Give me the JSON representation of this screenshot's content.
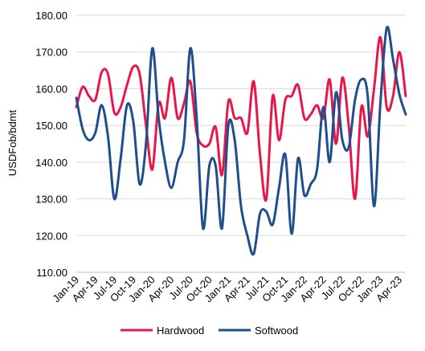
{
  "chart_data": {
    "type": "line",
    "title": "",
    "xlabel": "",
    "ylabel": "USDFob/bdmt",
    "ylim": [
      110,
      180
    ],
    "yticks": [
      "110.00",
      "120.00",
      "130.00",
      "140.00",
      "150.00",
      "160.00",
      "170.00",
      "180.00"
    ],
    "grid": true,
    "legend_position": "bottom",
    "x_tick_labels": [
      "Jan-19",
      "Apr-19",
      "Jul-19",
      "Oct-19",
      "Jan-20",
      "Apr-20",
      "Jul-20",
      "Oct-20",
      "Jan-21",
      "Apr-21",
      "Jul-21",
      "Oct-21",
      "Jan-22",
      "Apr-22",
      "Jul-22",
      "Oct-22",
      "Jan-23",
      "Apr-23"
    ],
    "x": [
      "Jan-19",
      "Feb-19",
      "Mar-19",
      "Apr-19",
      "May-19",
      "Jun-19",
      "Jul-19",
      "Aug-19",
      "Sep-19",
      "Oct-19",
      "Nov-19",
      "Dec-19",
      "Jan-20",
      "Feb-20",
      "Mar-20",
      "Apr-20",
      "May-20",
      "Jun-20",
      "Jul-20",
      "Aug-20",
      "Sep-20",
      "Oct-20",
      "Nov-20",
      "Dec-20",
      "Jan-21",
      "Feb-21",
      "Mar-21",
      "Apr-21",
      "May-21",
      "Jun-21",
      "Jul-21",
      "Aug-21",
      "Sep-21",
      "Oct-21",
      "Nov-21",
      "Dec-21",
      "Jan-22",
      "Feb-22",
      "Mar-22",
      "Apr-22",
      "May-22",
      "Jun-22",
      "Jul-22",
      "Aug-22",
      "Sep-22",
      "Oct-22",
      "Nov-22",
      "Dec-22",
      "Jan-23",
      "Feb-23",
      "Mar-23",
      "Apr-23",
      "May-23"
    ],
    "series": [
      {
        "name": "Hardwood",
        "color": "#e8174a",
        "values": [
          155,
          160.5,
          158,
          157,
          164.5,
          164,
          153.5,
          155,
          161,
          166,
          164,
          150,
          138,
          156,
          152,
          163,
          152,
          156,
          162,
          148,
          144.5,
          145,
          149.5,
          136.5,
          156.5,
          152,
          152,
          148,
          162,
          142,
          130,
          158,
          146,
          157,
          158,
          161,
          152,
          153,
          155.5,
          152,
          162.5,
          145,
          163,
          150,
          130,
          155,
          147,
          160,
          174,
          155,
          158,
          170,
          158
        ]
      },
      {
        "name": "Softwood",
        "color": "#1f4e8c",
        "values": [
          157.5,
          149,
          146,
          148,
          155.5,
          147,
          130,
          141,
          155.5,
          151,
          134,
          145,
          171,
          152,
          140,
          133,
          140,
          146,
          171,
          152,
          122,
          139,
          139,
          122,
          150,
          146,
          128,
          120,
          115,
          126,
          126.5,
          123,
          133,
          142,
          120.5,
          141,
          131,
          134,
          138,
          155,
          140,
          159,
          146,
          144,
          157,
          162.5,
          158,
          128,
          156,
          176.5,
          168,
          158.5,
          153
        ]
      }
    ]
  }
}
